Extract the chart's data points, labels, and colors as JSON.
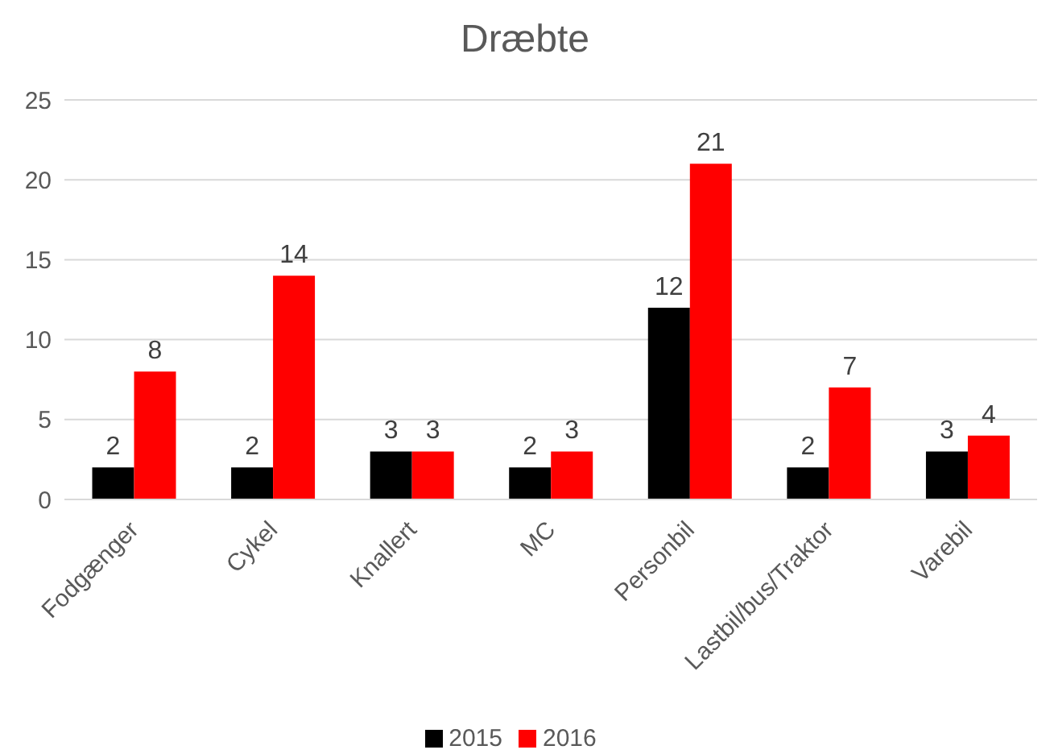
{
  "chart_data": {
    "type": "bar",
    "title": "Dræbte",
    "categories": [
      "Fodgænger",
      "Cykel",
      "Knallert",
      "MC",
      "Personbil",
      "Lastbil/bus/Traktor",
      "Varebil"
    ],
    "series": [
      {
        "name": "2015",
        "color": "#000000",
        "values": [
          2,
          2,
          3,
          2,
          12,
          2,
          3
        ]
      },
      {
        "name": "2016",
        "color": "#ff0000",
        "values": [
          8,
          14,
          3,
          3,
          21,
          7,
          4
        ]
      }
    ],
    "ylim": [
      0,
      25
    ],
    "yticks": [
      0,
      5,
      10,
      15,
      20,
      25
    ],
    "grid": "y",
    "legend": "bottom",
    "data_labels": true
  }
}
